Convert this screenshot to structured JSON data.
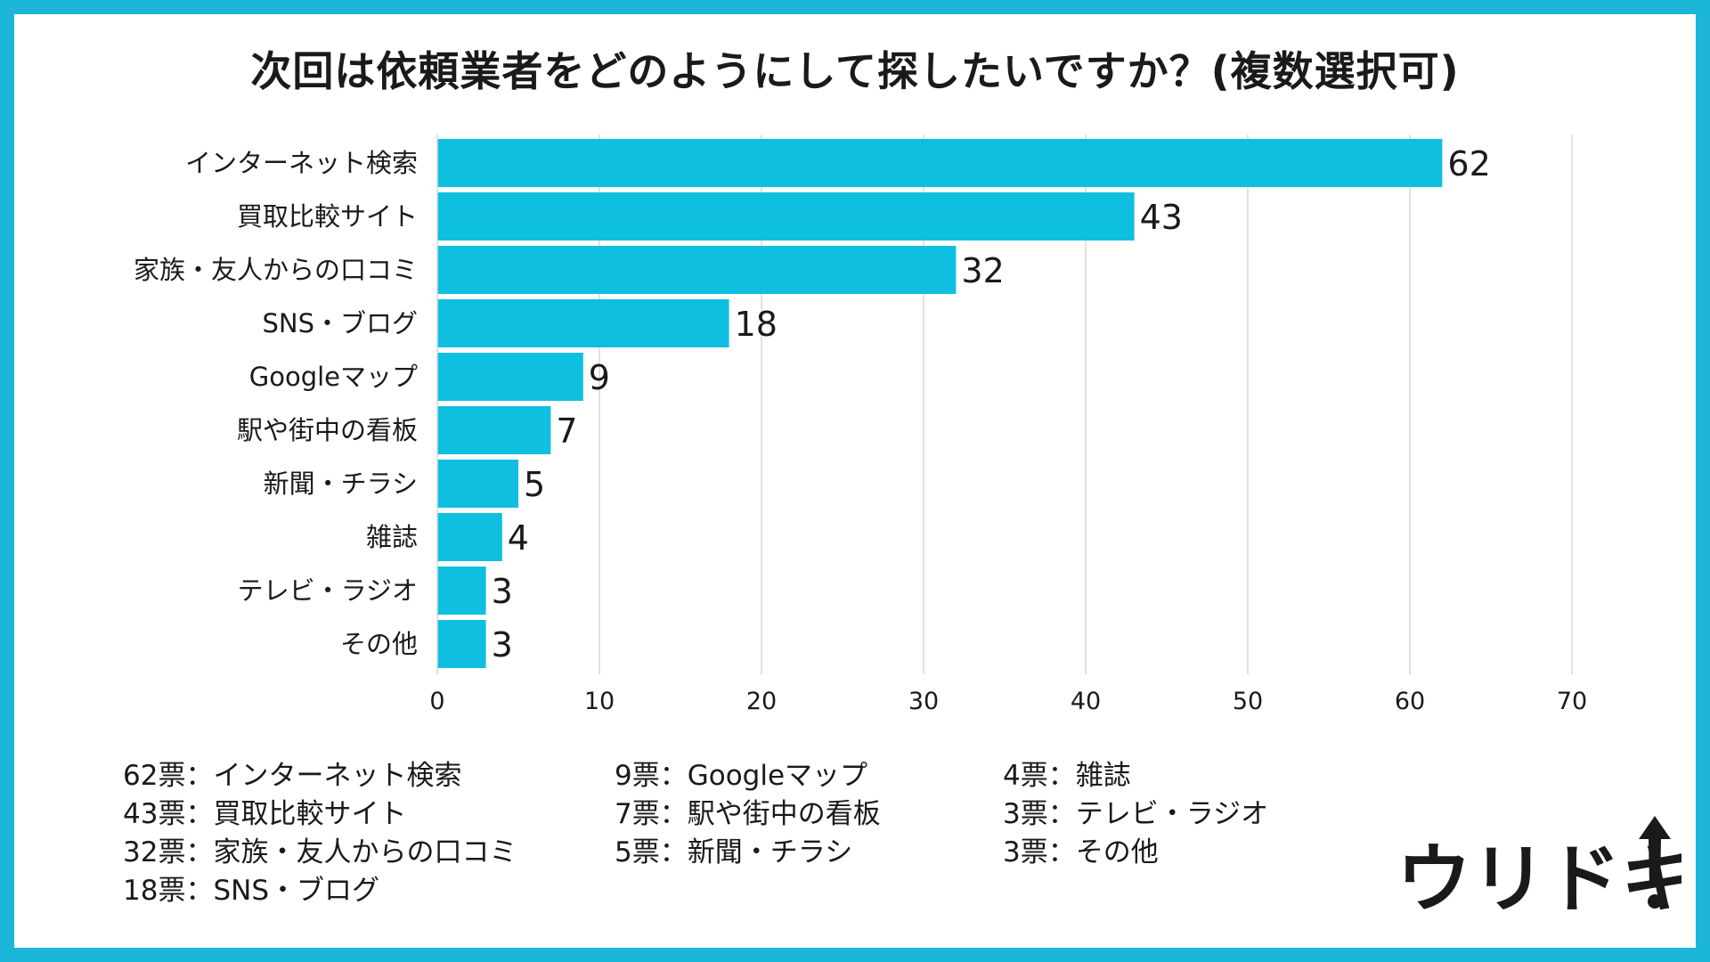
{
  "title": "次回は依頼業者をどのようにして探したいですか？(複数選択可)",
  "colors": {
    "bar": "#0fbfdf",
    "frame": "#1bb6d8",
    "grid": "#d9d9d9"
  },
  "chart_data": {
    "type": "bar",
    "orientation": "horizontal",
    "title": "次回は依頼業者をどのようにして探したいですか？(複数選択可)",
    "categories": [
      "インターネット検索",
      "買取比較サイト",
      "家族・友人からの口コミ",
      "SNS・ブログ",
      "Googleマップ",
      "駅や街中の看板",
      "新聞・チラシ",
      "雑誌",
      "テレビ・ラジオ",
      "その他"
    ],
    "values": [
      62,
      43,
      32,
      18,
      9,
      7,
      5,
      4,
      3,
      3
    ],
    "xlim": [
      0,
      70
    ],
    "xticks": [
      0,
      10,
      20,
      30,
      40,
      50,
      60,
      70
    ],
    "grid": true,
    "data_labels": true
  },
  "legend": {
    "col1": [
      "62票：インターネット検索",
      "43票：買取比較サイト",
      "32票：家族・友人からの口コミ",
      "18票：SNS・ブログ"
    ],
    "col2": [
      "9票：Googleマップ",
      "7票：駅や街中の看板",
      "5票：新聞・チラシ"
    ],
    "col3": [
      "4票：雑誌",
      "3票：テレビ・ラジオ",
      "3票：その他"
    ]
  },
  "logo": {
    "text": "ウリドキ",
    "icon": "up-arrow-exclamation-icon"
  }
}
